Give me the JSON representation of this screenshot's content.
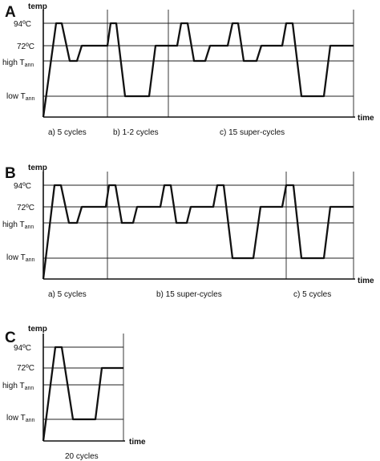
{
  "panels": {
    "A": {
      "letter": "A",
      "y_axis_label": "temp",
      "x_axis_label": "time",
      "levels": {
        "t94": "94ºC",
        "t72": "72ºC",
        "high": "high T",
        "low": "low T",
        "sub": "ann"
      },
      "captions": [
        "a) 5 cycles",
        "b) 1-2 cycles",
        "c) 15 super-cycles"
      ]
    },
    "B": {
      "letter": "B",
      "y_axis_label": "temp",
      "x_axis_label": "time",
      "levels": {
        "t94": "94ºC",
        "t72": "72ºC",
        "high": "high T",
        "low": "low T",
        "sub": "ann"
      },
      "captions": [
        "a) 5 cycles",
        "b) 15 super-cycles",
        "c) 5 cycles"
      ]
    },
    "C": {
      "letter": "C",
      "y_axis_label": "temp",
      "x_axis_label": "time",
      "levels": {
        "t94": "94ºC",
        "t72": "72ºC",
        "high": "high T",
        "low": "low T",
        "sub": "ann"
      },
      "captions": [
        "20 cycles"
      ]
    }
  }
}
